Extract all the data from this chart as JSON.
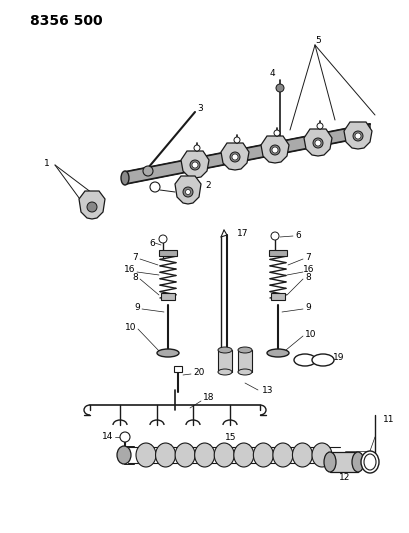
{
  "title": "8356 500",
  "bg_color": "#ffffff",
  "line_color": "#1a1a1a",
  "fig_width": 4.1,
  "fig_height": 5.33,
  "dpi": 100,
  "label_fontsize": 6.5,
  "title_fontsize": 10,
  "gray_fill": "#888888",
  "dark_gray": "#444444"
}
